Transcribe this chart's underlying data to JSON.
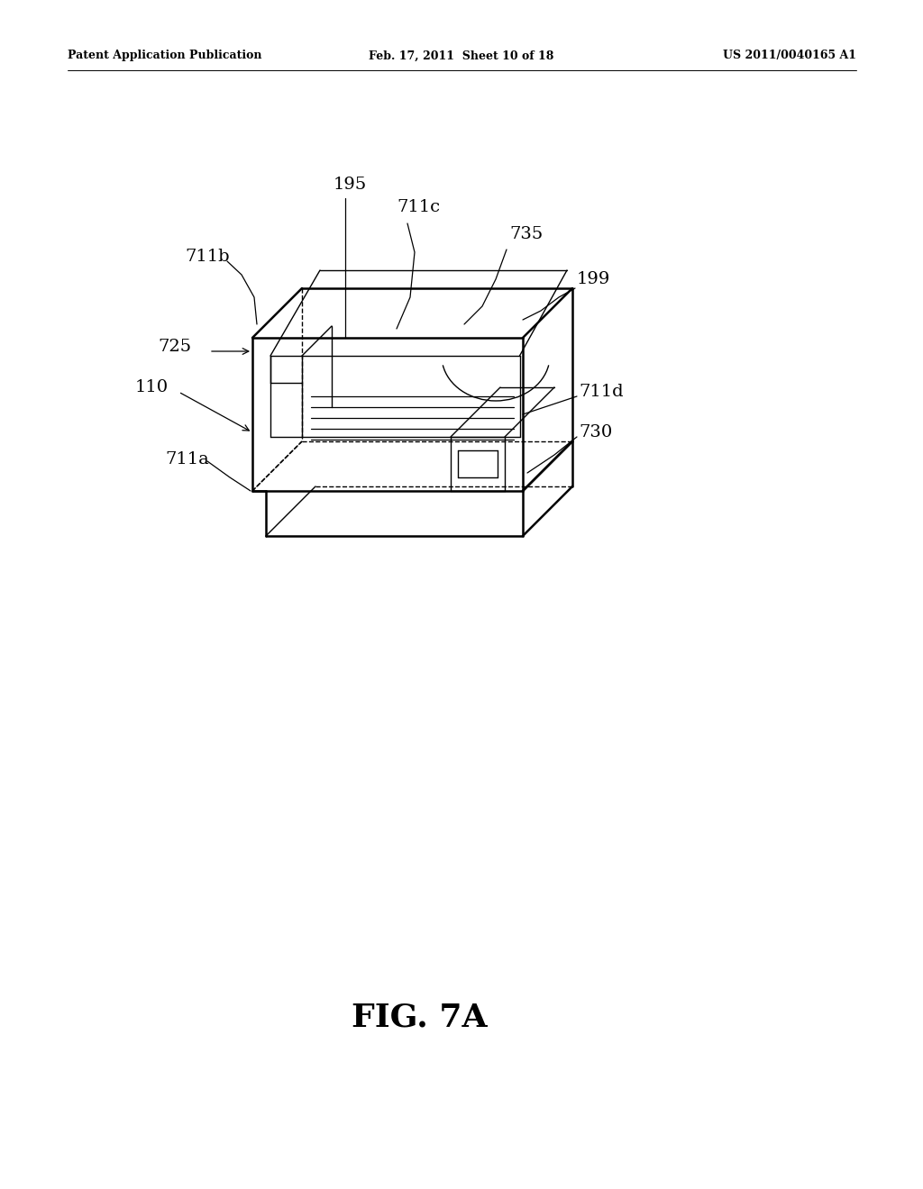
{
  "bg_color": "#ffffff",
  "header_left": "Patent Application Publication",
  "header_mid": "Feb. 17, 2011  Sheet 10 of 18",
  "header_right": "US 2011/0040165 A1",
  "fig_label": "FIG. 7A",
  "lw_main": 1.8,
  "lw_thin": 1.0
}
